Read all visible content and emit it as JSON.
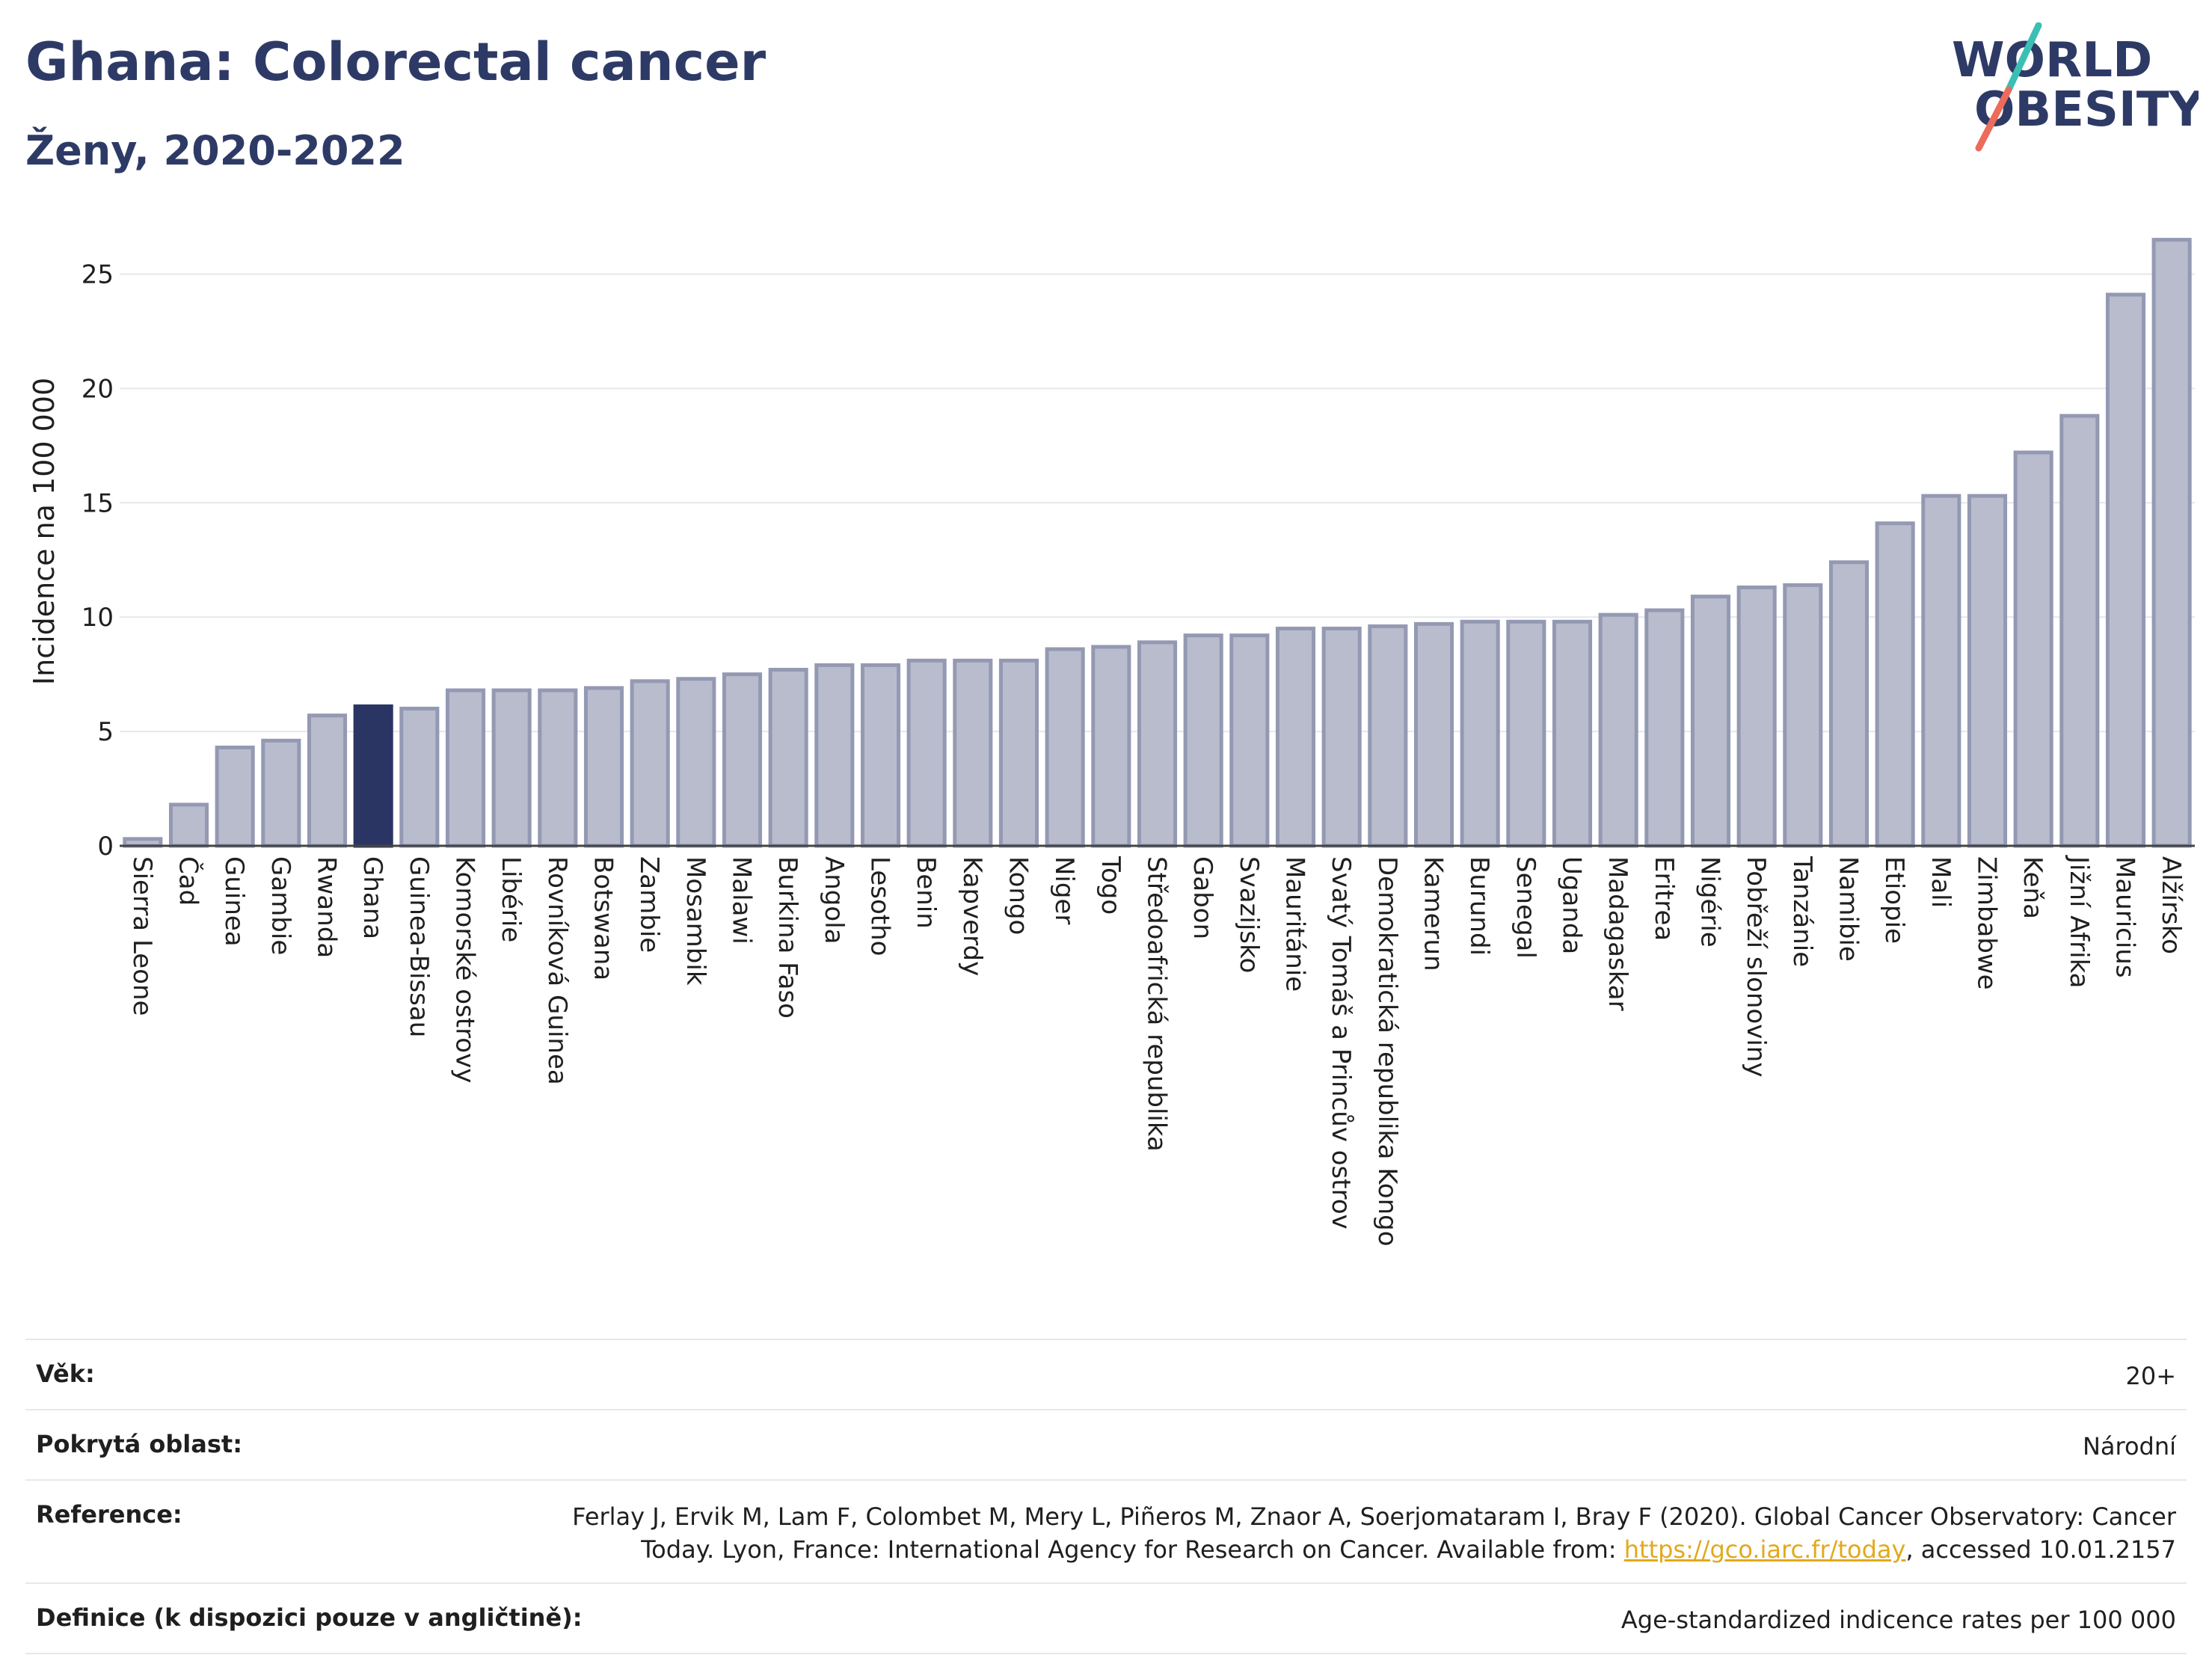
{
  "header": {
    "title": "Ghana: Colorectal cancer",
    "subtitle": "Ženy, 2020-2022",
    "logo_line1": "WORLD",
    "logo_line2": "OBESITY"
  },
  "colors": {
    "title": "#2e3a66",
    "bar": "#b9bccd",
    "bar_border": "#9499b3",
    "highlight": "#2b3563",
    "grid": "#e5e7ee",
    "link": "#e3a91c",
    "logo_teal": "#3bbfb5",
    "logo_coral": "#ec6b5a"
  },
  "chart_data": {
    "type": "bar",
    "title": "Ghana: Colorectal cancer",
    "subtitle": "Ženy, 2020-2022",
    "xlabel": "",
    "ylabel": "Incidence na 100 000",
    "ylim": [
      0,
      27.5
    ],
    "yticks": [
      0,
      5,
      10,
      15,
      20,
      25
    ],
    "grid": true,
    "highlight": "Ghana",
    "categories": [
      "Sierra Leone",
      "Čad",
      "Guinea",
      "Gambie",
      "Rwanda",
      "Ghana",
      "Guinea-Bissau",
      "Komorské ostrovy",
      "Libérie",
      "Rovníková Guinea",
      "Botswana",
      "Zambie",
      "Mosambik",
      "Malawi",
      "Burkina Faso",
      "Angola",
      "Lesotho",
      "Benin",
      "Kapverdy",
      "Kongo",
      "Niger",
      "Togo",
      "Středoafrická republika",
      "Gabon",
      "Svazijsko",
      "Mauritánie",
      "Svatý Tomáš a Princův ostrov",
      "Demokratická republika Kongo",
      "Kamerun",
      "Burundi",
      "Senegal",
      "Uganda",
      "Madagaskar",
      "Eritrea",
      "Nigérie",
      "Pobřeží slonoviny",
      "Tanzánie",
      "Namibie",
      "Etiopie",
      "Mali",
      "Zimbabwe",
      "Keňa",
      "Jižní Afrika",
      "Mauricius",
      "Alžírsko"
    ],
    "values": [
      0.3,
      1.8,
      4.3,
      4.6,
      5.7,
      6.1,
      6.0,
      6.8,
      6.8,
      6.8,
      6.9,
      7.2,
      7.3,
      7.5,
      7.7,
      7.9,
      7.9,
      8.1,
      8.1,
      8.1,
      8.6,
      8.7,
      8.9,
      9.2,
      9.2,
      9.5,
      9.5,
      9.6,
      9.7,
      9.8,
      9.8,
      9.8,
      10.1,
      10.3,
      10.9,
      11.3,
      11.4,
      12.4,
      14.1,
      15.3,
      15.3,
      17.2,
      18.8,
      24.1,
      26.5
    ]
  },
  "info": [
    {
      "label": "Věk:",
      "value": "20+"
    },
    {
      "label": "Pokrytá oblast:",
      "value": "Národní"
    },
    {
      "label": "Reference:",
      "value_line1": "Ferlay J, Ervik M, Lam F, Colombet M, Mery L, Piñeros M, Znaor A, Soerjomataram I, Bray F (2020). Global Cancer Observatory: Cancer",
      "value_pre": "Today. Lyon, France: International Agency for Research on Cancer. Available from: ",
      "link": "https://gco.iarc.fr/today",
      "value_post": ", accessed 10.01.2157"
    },
    {
      "label": "Definice (k dispozici pouze v angličtině):",
      "value": "Age-standardized indicence rates per 100 000"
    }
  ]
}
